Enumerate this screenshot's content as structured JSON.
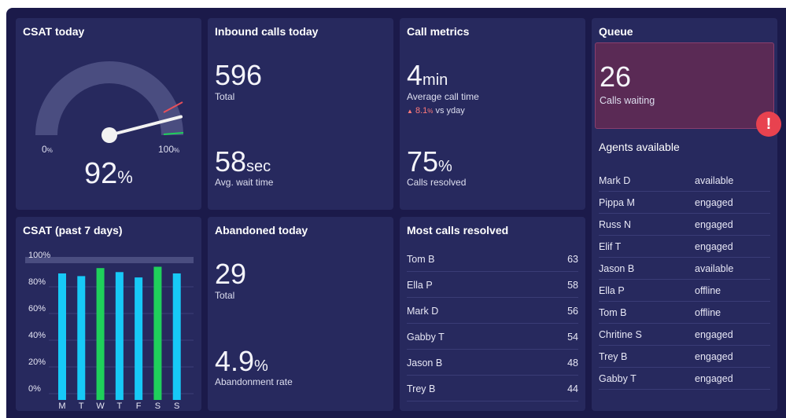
{
  "colors": {
    "background": "#1b1a4a",
    "card": "#27295e",
    "bar_blue": "#17c9f7",
    "bar_green": "#1fd05b",
    "alert_red": "#e8424f",
    "trend_red": "#ff7a7a"
  },
  "csat_today": {
    "title": "CSAT today",
    "gauge_min": "0",
    "gauge_min_unit": "%",
    "gauge_max": "100",
    "gauge_max_unit": "%",
    "value": "92",
    "unit": "%",
    "value_fraction": 0.92
  },
  "inbound": {
    "title": "Inbound calls today",
    "total_value": "596",
    "total_label": "Total",
    "wait_value": "58",
    "wait_unit": "sec",
    "wait_label": "Avg. wait time"
  },
  "call_metrics": {
    "title": "Call metrics",
    "avg_value": "4",
    "avg_unit": "min",
    "avg_label": "Average call time",
    "trend_icon": "triangle-up-icon",
    "trend_value": "8.1",
    "trend_unit": "%",
    "trend_suffix": "vs yday",
    "resolved_value": "75",
    "resolved_unit": "%",
    "resolved_label": "Calls resolved"
  },
  "queue": {
    "title": "Queue",
    "waiting_value": "26",
    "waiting_label": "Calls waiting",
    "alert_icon": "exclamation-icon",
    "agents_title": "Agents available",
    "agents": [
      {
        "name": "Mark D",
        "status": "available"
      },
      {
        "name": "Pippa M",
        "status": "engaged"
      },
      {
        "name": "Russ N",
        "status": "engaged"
      },
      {
        "name": "Elif T",
        "status": "engaged"
      },
      {
        "name": "Jason B",
        "status": "available"
      },
      {
        "name": "Ella P",
        "status": "offline"
      },
      {
        "name": "Tom B",
        "status": "offline"
      },
      {
        "name": "Chritine S",
        "status": "engaged"
      },
      {
        "name": "Trey B",
        "status": "engaged"
      },
      {
        "name": "Gabby T",
        "status": "engaged"
      }
    ]
  },
  "csat_week": {
    "title": "CSAT (past 7 days)"
  },
  "abandoned": {
    "title": "Abandoned today",
    "total_value": "29",
    "total_label": "Total",
    "rate_value": "4.9",
    "rate_unit": "%",
    "rate_label": "Abandonment rate"
  },
  "most_resolved": {
    "title": "Most calls resolved",
    "rows": [
      {
        "name": "Tom B",
        "count": "63"
      },
      {
        "name": "Ella P",
        "count": "58"
      },
      {
        "name": "Mark D",
        "count": "56"
      },
      {
        "name": "Gabby T",
        "count": "54"
      },
      {
        "name": "Jason B",
        "count": "48"
      },
      {
        "name": "Trey B",
        "count": "44"
      }
    ]
  },
  "chart_data": {
    "type": "bar",
    "title": "CSAT (past 7 days)",
    "categories": [
      "M",
      "T",
      "W",
      "T",
      "F",
      "S",
      "S"
    ],
    "values": [
      90,
      88,
      94,
      91,
      87,
      95,
      90
    ],
    "bar_colors": [
      "#17c9f7",
      "#17c9f7",
      "#1fd05b",
      "#17c9f7",
      "#17c9f7",
      "#1fd05b",
      "#17c9f7"
    ],
    "yticks": [
      "0%",
      "20%",
      "40%",
      "60%",
      "80%",
      "100%"
    ],
    "ylim": [
      0,
      100
    ],
    "grid": true
  }
}
